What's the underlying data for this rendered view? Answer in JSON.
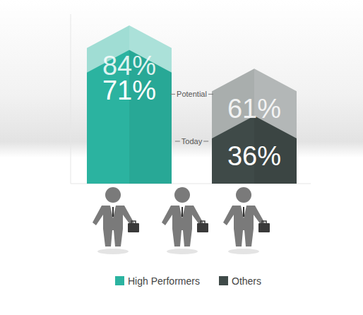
{
  "chart_data": {
    "type": "bar",
    "categories": [
      "Potential",
      "Today"
    ],
    "series": [
      {
        "name": "High Performers",
        "color": "#2bb3a0",
        "values": [
          84,
          71
        ],
        "value_labels": [
          "84%",
          "71%"
        ]
      },
      {
        "name": "Others",
        "color": "#3f4a48",
        "values": [
          61,
          36
        ],
        "value_labels": [
          "61%",
          "36%"
        ]
      }
    ],
    "ylim": [
      0,
      90
    ],
    "data_labels": true,
    "tick_labels": false,
    "legend": "bottom"
  }
}
